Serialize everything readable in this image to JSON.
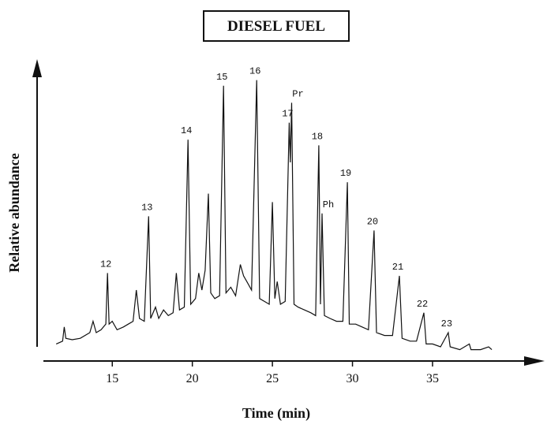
{
  "chart_data": {
    "type": "line",
    "title": "DIESEL FUEL",
    "ylabel": "Relative abundance",
    "xlabel": "Time (min)",
    "xlim": [
      10.7,
      42
    ],
    "xticks": [
      15,
      20,
      25,
      30,
      35
    ],
    "ylim": [
      0,
      100
    ],
    "color": "#111111",
    "x": [
      11.5,
      11.9,
      12.0,
      12.1,
      12.5,
      13.0,
      13.6,
      13.8,
      14.0,
      14.3,
      14.6,
      14.7,
      14.8,
      15.0,
      15.3,
      15.7,
      16.0,
      16.3,
      16.5,
      16.7,
      17.0,
      17.27,
      17.4,
      17.7,
      17.9,
      18.2,
      18.5,
      18.8,
      19.0,
      19.2,
      19.5,
      19.73,
      19.9,
      20.2,
      20.4,
      20.6,
      20.8,
      21.0,
      21.15,
      21.4,
      21.7,
      21.95,
      22.1,
      22.4,
      22.7,
      23.0,
      23.2,
      23.4,
      23.7,
      24.02,
      24.2,
      24.5,
      24.8,
      25.0,
      25.15,
      25.3,
      25.5,
      25.8,
      26.05,
      26.12,
      26.2,
      26.35,
      26.6,
      27.0,
      27.4,
      27.7,
      27.9,
      28.0,
      28.1,
      28.25,
      28.6,
      29.0,
      29.4,
      29.68,
      29.8,
      30.2,
      30.6,
      31.0,
      31.35,
      31.5,
      32.0,
      32.5,
      32.93,
      33.1,
      33.6,
      34.0,
      34.46,
      34.6,
      35.0,
      35.5,
      35.98,
      36.1,
      36.7,
      37.3,
      37.4,
      38.0,
      38.5,
      38.7
    ],
    "values": [
      6,
      7,
      12,
      8,
      7.5,
      8,
      10,
      14,
      10,
      11,
      13,
      31,
      13,
      14,
      11,
      12,
      13,
      14,
      25,
      15,
      14,
      51,
      15,
      19,
      15,
      18,
      16,
      17,
      31,
      18,
      19,
      78,
      20,
      22,
      31,
      25,
      32,
      59,
      24,
      22,
      23,
      97,
      24,
      26,
      23,
      34,
      30,
      28,
      25,
      99,
      22,
      21,
      20,
      56,
      22,
      28,
      20,
      21,
      84,
      70,
      91,
      20,
      19,
      18,
      17,
      16,
      76,
      20,
      52,
      16,
      15,
      14,
      14,
      63,
      13,
      13,
      12,
      11,
      46,
      10,
      9,
      9,
      30,
      8,
      7,
      7,
      17,
      6,
      6,
      5,
      10,
      5,
      4,
      6,
      4,
      4,
      5,
      4
    ],
    "annotations": [
      {
        "text": "12",
        "x": 14.7
      },
      {
        "text": "13",
        "x": 17.27
      },
      {
        "text": "14",
        "x": 19.73
      },
      {
        "text": "15",
        "x": 21.95
      },
      {
        "text": "16",
        "x": 24.02
      },
      {
        "text": "17",
        "x": 26.05
      },
      {
        "text": "Pr",
        "x": 26.2
      },
      {
        "text": "18",
        "x": 27.9
      },
      {
        "text": "Ph",
        "x": 28.1
      },
      {
        "text": "19",
        "x": 29.68
      },
      {
        "text": "20",
        "x": 31.35
      },
      {
        "text": "21",
        "x": 32.93
      },
      {
        "text": "22",
        "x": 34.46
      },
      {
        "text": "23",
        "x": 35.98
      }
    ]
  }
}
